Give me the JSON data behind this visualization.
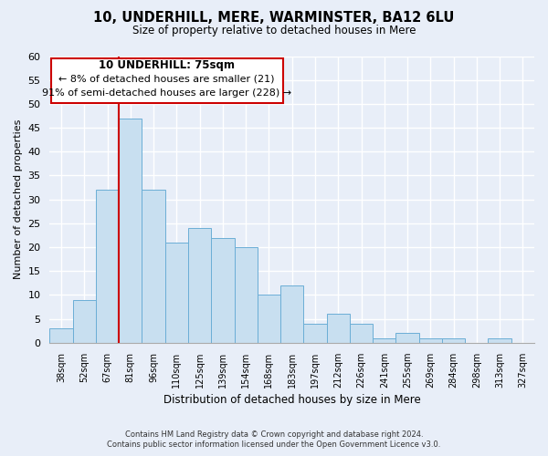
{
  "title": "10, UNDERHILL, MERE, WARMINSTER, BA12 6LU",
  "subtitle": "Size of property relative to detached houses in Mere",
  "xlabel": "Distribution of detached houses by size in Mere",
  "ylabel": "Number of detached properties",
  "bar_labels": [
    "38sqm",
    "52sqm",
    "67sqm",
    "81sqm",
    "96sqm",
    "110sqm",
    "125sqm",
    "139sqm",
    "154sqm",
    "168sqm",
    "183sqm",
    "197sqm",
    "212sqm",
    "226sqm",
    "241sqm",
    "255sqm",
    "269sqm",
    "284sqm",
    "298sqm",
    "313sqm",
    "327sqm"
  ],
  "bar_values": [
    3,
    9,
    32,
    47,
    32,
    21,
    24,
    22,
    20,
    10,
    12,
    4,
    6,
    4,
    1,
    2,
    1,
    1,
    0,
    1,
    0
  ],
  "bar_color": "#c8dff0",
  "bar_edge_color": "#6baed6",
  "vline_color": "#cc0000",
  "ylim": [
    0,
    60
  ],
  "yticks": [
    0,
    5,
    10,
    15,
    20,
    25,
    30,
    35,
    40,
    45,
    50,
    55,
    60
  ],
  "annotation_title": "10 UNDERHILL: 75sqm",
  "annotation_line1": "← 8% of detached houses are smaller (21)",
  "annotation_line2": "91% of semi-detached houses are larger (228) →",
  "annotation_box_color": "#ffffff",
  "annotation_box_edge": "#cc0000",
  "footer_line1": "Contains HM Land Registry data © Crown copyright and database right 2024.",
  "footer_line2": "Contains public sector information licensed under the Open Government Licence v3.0.",
  "bg_color": "#e8eef8",
  "plot_bg_color": "#e8eef8",
  "grid_color": "#ffffff"
}
